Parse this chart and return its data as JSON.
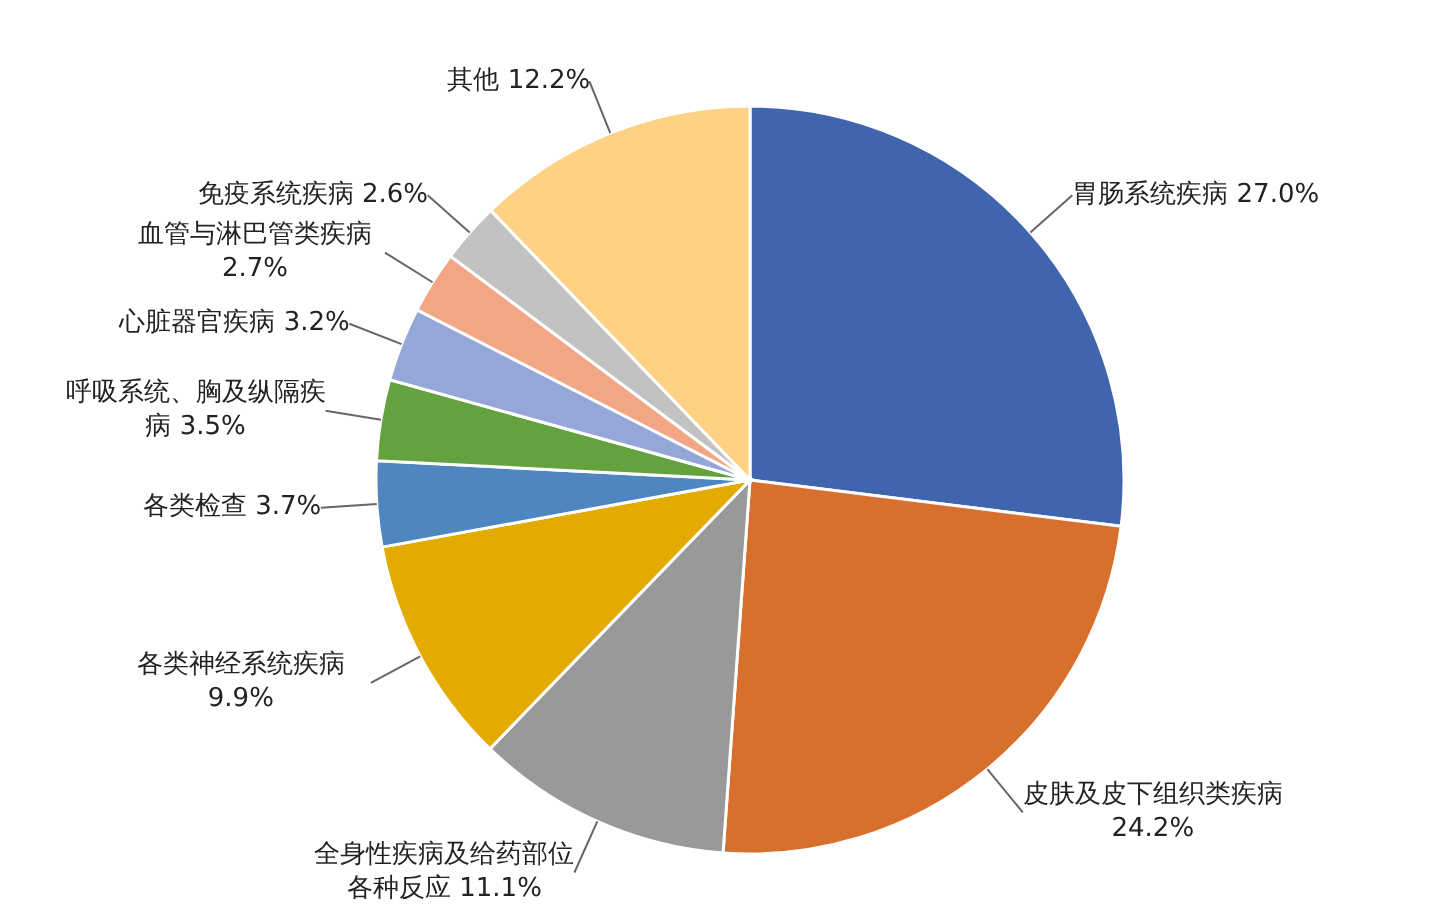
{
  "chart_data": {
    "type": "pie",
    "value_labels": [
      "27.0%",
      "24.2%",
      "11.1%",
      "9.9%",
      "3.7%",
      "3.5%",
      "3.2%",
      "2.7%",
      "2.6%",
      "12.2%"
    ],
    "categories": [
      "胃肠系统疾病",
      "皮肤及皮下组织类疾病",
      "全身性疾病及给药部位各种反应",
      "各类神经系统疾病",
      "各类检查",
      "呼吸系统、胸及纵隔疾病",
      "心脏器官疾病",
      "血管与淋巴管类疾病",
      "免疫系统疾病",
      "其他"
    ],
    "values": [
      27.0,
      24.2,
      11.1,
      9.9,
      3.7,
      3.5,
      3.2,
      2.7,
      2.6,
      12.2
    ],
    "colors": [
      "#4065ac",
      "#d8702d",
      "#999999",
      "#e3aa00",
      "#4f86c0",
      "#64a23f",
      "#95a7d8",
      "#f2a685",
      "#c2c2c2",
      "#ffd184"
    ]
  }
}
